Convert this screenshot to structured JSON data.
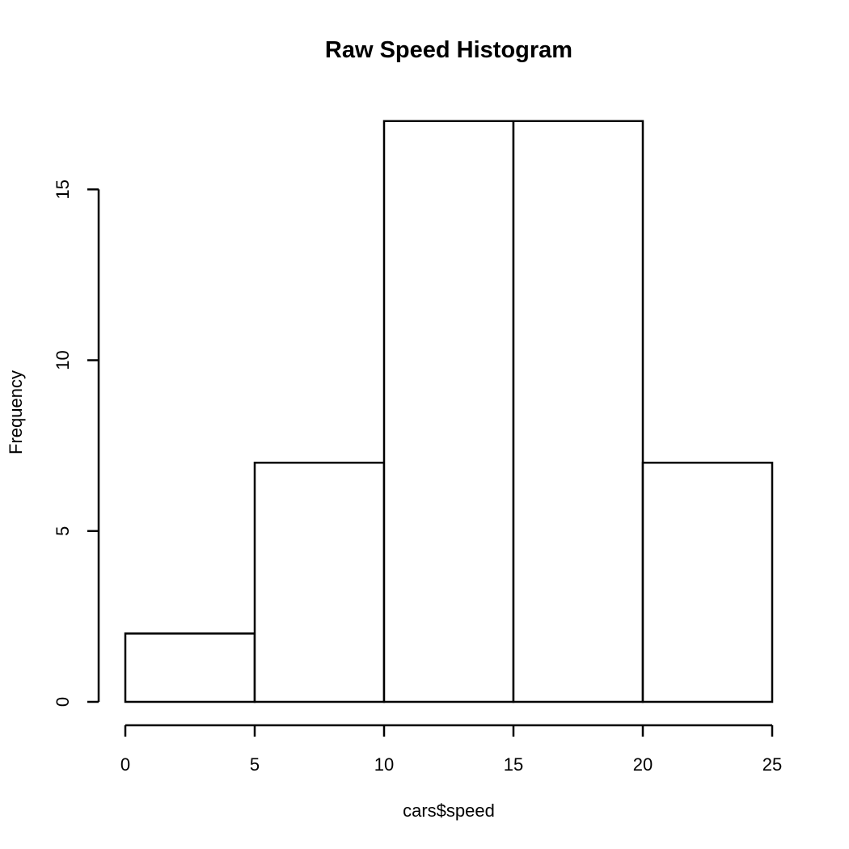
{
  "chart_data": {
    "type": "bar",
    "title": "Raw Speed Histogram",
    "xlabel": "cars$speed",
    "ylabel": "Frequency",
    "bins": [
      {
        "x0": 0,
        "x1": 5,
        "count": 2
      },
      {
        "x0": 5,
        "x1": 10,
        "count": 7
      },
      {
        "x0": 10,
        "x1": 15,
        "count": 17
      },
      {
        "x0": 15,
        "x1": 20,
        "count": 17
      },
      {
        "x0": 20,
        "x1": 25,
        "count": 7
      }
    ],
    "xlim": [
      0,
      25
    ],
    "ylim": [
      0,
      17
    ],
    "x_ticks": [
      0,
      5,
      10,
      15,
      20,
      25
    ],
    "y_ticks": [
      0,
      5,
      10,
      15
    ],
    "grid": false,
    "bar_fill": "#ffffff",
    "bar_stroke": "#000000"
  }
}
